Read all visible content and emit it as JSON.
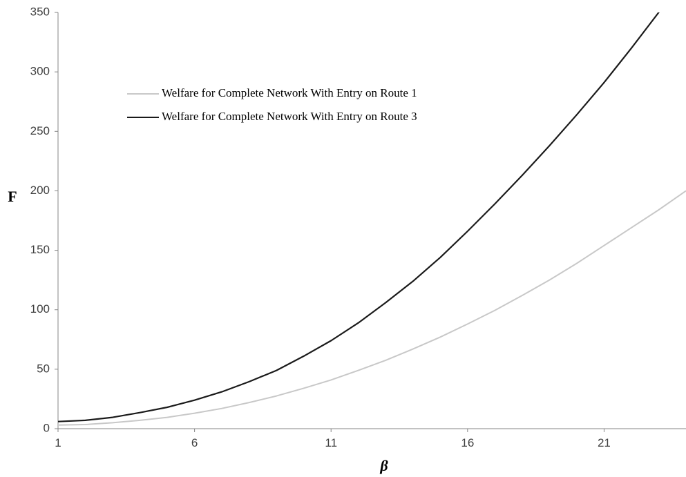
{
  "chart_data": {
    "type": "line",
    "xlabel": "β",
    "ylabel": "F",
    "xlim": [
      1,
      24
    ],
    "ylim": [
      0,
      350
    ],
    "x_ticks": [
      "1",
      "6",
      "11",
      "16",
      "21"
    ],
    "y_ticks": [
      "0",
      "50",
      "100",
      "150",
      "200",
      "250",
      "300",
      "350"
    ],
    "grid": false,
    "legend_position": "upper-left",
    "x": [
      1,
      2,
      3,
      4,
      5,
      6,
      7,
      8,
      9,
      10,
      11,
      12,
      13,
      14,
      15,
      16,
      17,
      18,
      19,
      20,
      21,
      22,
      23,
      24
    ],
    "series": [
      {
        "name": "Welfare for Complete Network With Entry on Route 1",
        "color": "#c8c8c8",
        "values": [
          3,
          3.5,
          5,
          7,
          9.5,
          13,
          17,
          22,
          27.5,
          34,
          41,
          49,
          57.5,
          67,
          77,
          88,
          99.5,
          112,
          125,
          139,
          154,
          169,
          184,
          200
        ]
      },
      {
        "name": "Welfare for Complete Network With Entry on Route 3",
        "color": "#1a1a1a",
        "values": [
          6,
          7,
          9.5,
          13.5,
          18,
          24,
          31,
          39.5,
          49,
          61,
          74,
          89,
          106,
          124,
          144,
          166,
          189,
          213,
          238,
          264,
          291,
          320,
          350,
          383
        ]
      }
    ]
  }
}
